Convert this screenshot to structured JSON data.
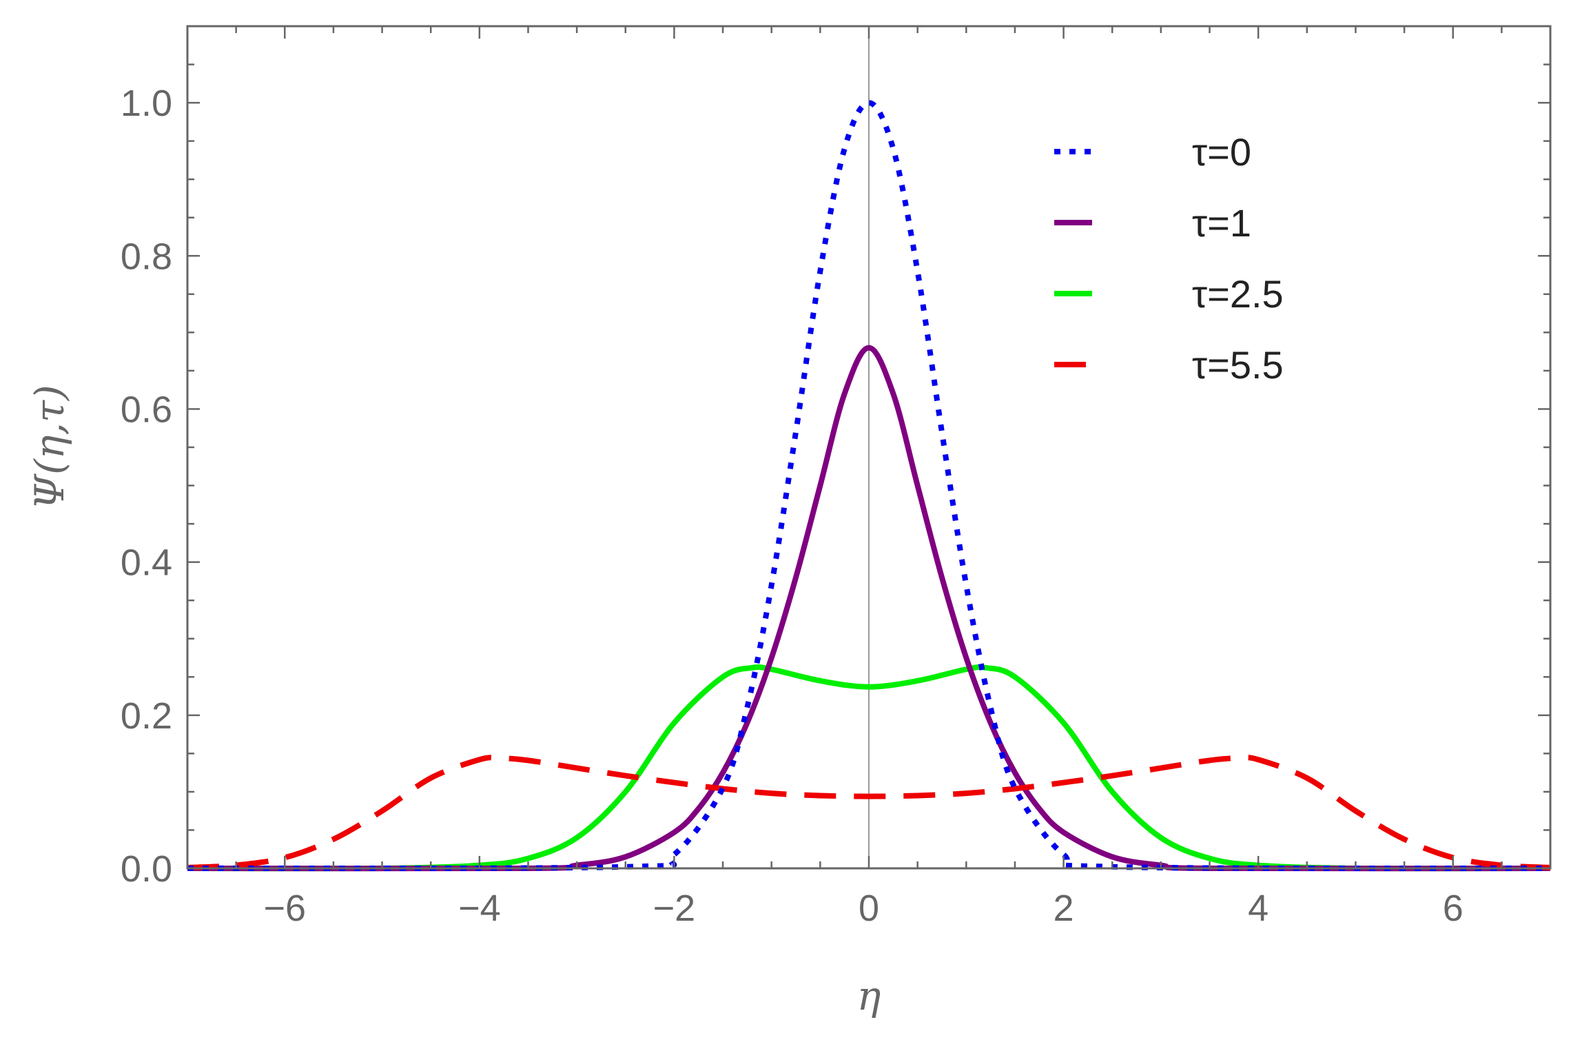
{
  "chart_data": {
    "type": "line",
    "title": "",
    "xlabel": "η",
    "ylabel": "Ψ(η,τ)",
    "xlim": [
      -7,
      7
    ],
    "ylim": [
      0,
      1.1
    ],
    "x_ticks": [
      -6,
      -4,
      -2,
      0,
      2,
      4,
      6
    ],
    "x_tick_labels": [
      "−6",
      "−4",
      "−2",
      "0",
      "2",
      "4",
      "6"
    ],
    "y_ticks": [
      0.0,
      0.2,
      0.4,
      0.6,
      0.8,
      1.0
    ],
    "y_tick_labels": [
      "0.0",
      "0.2",
      "0.4",
      "0.6",
      "0.8",
      "1.0"
    ],
    "grid": false,
    "legend_position": "top-right",
    "series": [
      {
        "name": "τ=0",
        "color": "#0000ee",
        "style": "dotted",
        "x": [
          -7,
          -2.5,
          -2,
          -1.5,
          -1.25,
          -1,
          -0.75,
          -0.5,
          -0.25,
          0,
          0.25,
          0.5,
          0.75,
          1,
          1.25,
          1.5,
          2,
          2.5,
          7
        ],
        "y": [
          0.0,
          0.002,
          0.018,
          0.105,
          0.21,
          0.37,
          0.57,
          0.78,
          0.94,
          1.0,
          0.94,
          0.78,
          0.57,
          0.37,
          0.21,
          0.105,
          0.018,
          0.002,
          0.0
        ]
      },
      {
        "name": "τ=1",
        "color": "#800080",
        "style": "solid",
        "x": [
          -7,
          -3.5,
          -3,
          -2.5,
          -2,
          -1.75,
          -1.5,
          -1.25,
          -1,
          -0.75,
          -0.5,
          -0.25,
          0,
          0.25,
          0.5,
          0.75,
          1,
          1.25,
          1.5,
          1.75,
          2,
          2.5,
          3,
          3.5,
          7
        ],
        "y": [
          0.0,
          0.0,
          0.004,
          0.015,
          0.047,
          0.078,
          0.125,
          0.19,
          0.275,
          0.38,
          0.5,
          0.62,
          0.68,
          0.62,
          0.5,
          0.38,
          0.275,
          0.19,
          0.125,
          0.078,
          0.047,
          0.015,
          0.004,
          0.0,
          0.0
        ]
      },
      {
        "name": "τ=2.5",
        "color": "#00ee00",
        "style": "solid",
        "x": [
          -7,
          -5,
          -4,
          -3.5,
          -3,
          -2.5,
          -2,
          -1.5,
          -1.2,
          -1,
          -0.5,
          0,
          0.5,
          1,
          1.2,
          1.5,
          2,
          2.5,
          3,
          3.5,
          4,
          5,
          7
        ],
        "y": [
          0.0,
          0.0,
          0.004,
          0.013,
          0.04,
          0.1,
          0.19,
          0.25,
          0.262,
          0.26,
          0.245,
          0.237,
          0.245,
          0.26,
          0.262,
          0.25,
          0.19,
          0.1,
          0.04,
          0.013,
          0.004,
          0.0,
          0.0
        ]
      },
      {
        "name": "τ=5.5",
        "color": "#ee0000",
        "style": "dashed",
        "x": [
          -7,
          -6.5,
          -6,
          -5.5,
          -5,
          -4.5,
          -4,
          -3.8,
          -3.5,
          -3,
          -2.5,
          -2,
          -1.5,
          -1,
          -0.5,
          0,
          0.5,
          1,
          1.5,
          2,
          2.5,
          3,
          3.5,
          3.8,
          4,
          4.5,
          5,
          5.5,
          6,
          6.5,
          7
        ],
        "y": [
          0.001,
          0.004,
          0.014,
          0.038,
          0.075,
          0.118,
          0.142,
          0.144,
          0.141,
          0.131,
          0.121,
          0.112,
          0.104,
          0.098,
          0.095,
          0.094,
          0.095,
          0.098,
          0.104,
          0.112,
          0.121,
          0.131,
          0.141,
          0.144,
          0.142,
          0.118,
          0.075,
          0.038,
          0.014,
          0.004,
          0.001
        ]
      }
    ]
  }
}
